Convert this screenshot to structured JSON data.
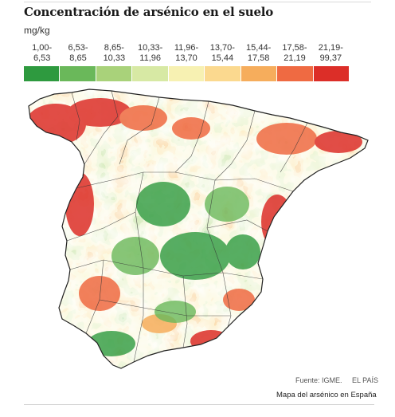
{
  "header": {
    "title": "Concentración de arsénico en el suelo",
    "unit": "mg/kg"
  },
  "legend": {
    "classes": [
      {
        "line1": "1,00-",
        "line2": "6,53",
        "color": "#2e9a3f"
      },
      {
        "line1": "6,53-",
        "line2": "8,65",
        "color": "#6ab85a"
      },
      {
        "line1": "8,65-",
        "line2": "10,33",
        "color": "#a9d27a"
      },
      {
        "line1": "10,33-",
        "line2": "11,96",
        "color": "#d7e9a4"
      },
      {
        "line1": "11,96-",
        "line2": "13,70",
        "color": "#f7f1b2"
      },
      {
        "line1": "13,70-",
        "line2": "15,44",
        "color": "#fbd98f"
      },
      {
        "line1": "15,44-",
        "line2": "17,58",
        "color": "#f6ad5c"
      },
      {
        "line1": "17,58-",
        "line2": "21,19",
        "color": "#ef6a42"
      },
      {
        "line1": "21,19-",
        "line2": "99,37",
        "color": "#dc2e28"
      }
    ]
  },
  "map": {
    "region": "España peninsular",
    "border_color": "#333333"
  },
  "footer": {
    "source": "Fuente: IGME.",
    "brand": "EL PAÍS",
    "caption": "Mapa del arsénico en España"
  }
}
